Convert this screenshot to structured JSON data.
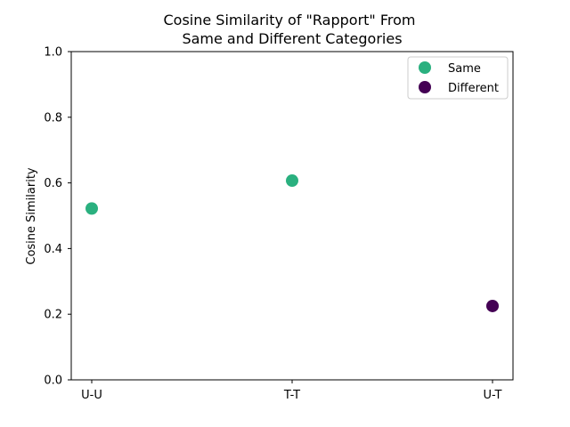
{
  "chart_data": {
    "type": "scatter",
    "title": [
      "Cosine Similarity of \"Rapport\" From",
      "Same and Different Categories"
    ],
    "xlabel": "",
    "ylabel": "Cosine Similarity",
    "categories": [
      "U-U",
      "T-T",
      "U-T"
    ],
    "ylim": [
      0.0,
      1.0
    ],
    "yticks": [
      "0.0",
      "0.2",
      "0.4",
      "0.6",
      "0.8",
      "1.0"
    ],
    "grid": false,
    "legend_position": "top-right",
    "series": [
      {
        "name": "Same",
        "color": "#2ab07f",
        "points": [
          {
            "x": "U-U",
            "y": 0.522
          },
          {
            "x": "T-T",
            "y": 0.607
          }
        ]
      },
      {
        "name": "Different",
        "color": "#440154",
        "points": [
          {
            "x": "U-T",
            "y": 0.225
          }
        ]
      }
    ]
  }
}
